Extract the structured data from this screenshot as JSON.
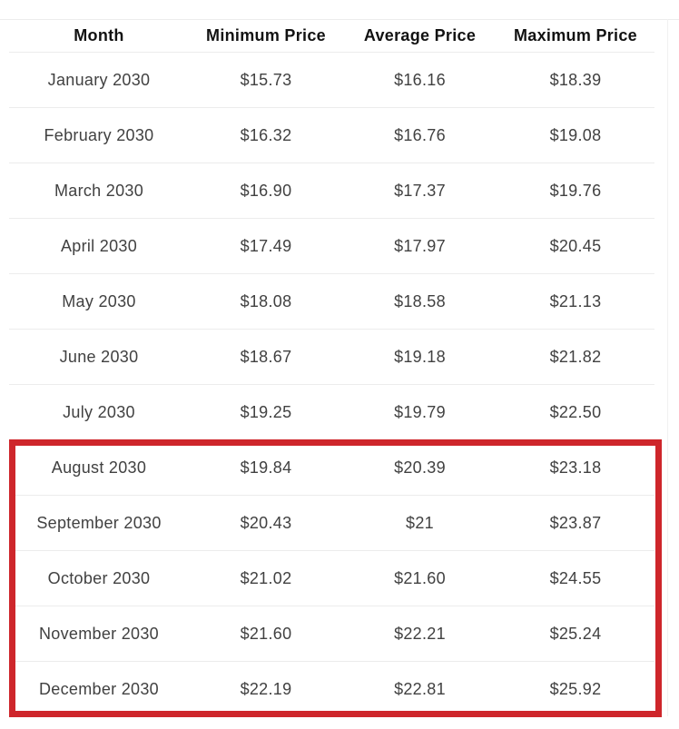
{
  "table": {
    "columns": [
      "Month",
      "Minimum Price",
      "Average Price",
      "Maximum Price"
    ],
    "rows": [
      {
        "month": "January 2030",
        "min": "$15.73",
        "avg": "$16.16",
        "max": "$18.39",
        "highlighted": false
      },
      {
        "month": "February 2030",
        "min": "$16.32",
        "avg": "$16.76",
        "max": "$19.08",
        "highlighted": false
      },
      {
        "month": "March 2030",
        "min": "$16.90",
        "avg": "$17.37",
        "max": "$19.76",
        "highlighted": false
      },
      {
        "month": "April 2030",
        "min": "$17.49",
        "avg": "$17.97",
        "max": "$20.45",
        "highlighted": false
      },
      {
        "month": "May 2030",
        "min": "$18.08",
        "avg": "$18.58",
        "max": "$21.13",
        "highlighted": false
      },
      {
        "month": "June 2030",
        "min": "$18.67",
        "avg": "$19.18",
        "max": "$21.82",
        "highlighted": false
      },
      {
        "month": "July 2030",
        "min": "$19.25",
        "avg": "$19.79",
        "max": "$22.50",
        "highlighted": false
      },
      {
        "month": "August 2030",
        "min": "$19.84",
        "avg": "$20.39",
        "max": "$23.18",
        "highlighted": true
      },
      {
        "month": "September 2030",
        "min": "$20.43",
        "avg": "$21",
        "max": "$23.87",
        "highlighted": true
      },
      {
        "month": "October 2030",
        "min": "$21.02",
        "avg": "$21.60",
        "max": "$24.55",
        "highlighted": true
      },
      {
        "month": "November 2030",
        "min": "$21.60",
        "avg": "$22.21",
        "max": "$25.24",
        "highlighted": true
      },
      {
        "month": "December 2030",
        "min": "$22.19",
        "avg": "$22.81",
        "max": "$25.92",
        "highlighted": true
      }
    ]
  },
  "annotation": {
    "type": "highlight-box",
    "border_color": "#ce262b",
    "rows_enclosed": [
      "August 2030",
      "September 2030",
      "October 2030",
      "November 2030",
      "December 2030"
    ]
  },
  "colors": {
    "background": "#ffffff",
    "header_text": "#121212",
    "body_text": "#414141",
    "row_divider": "#ececec",
    "table_right_border": "#f1f1f1",
    "highlight_border": "#ce262b"
  },
  "chart_data": {
    "type": "table",
    "columns": [
      "Month",
      "Minimum Price",
      "Average Price",
      "Maximum Price"
    ],
    "rows": [
      [
        "January 2030",
        "$15.73",
        "$16.16",
        "$18.39"
      ],
      [
        "February 2030",
        "$16.32",
        "$16.76",
        "$19.08"
      ],
      [
        "March 2030",
        "$16.90",
        "$17.37",
        "$19.76"
      ],
      [
        "April 2030",
        "$17.49",
        "$17.97",
        "$20.45"
      ],
      [
        "May 2030",
        "$18.08",
        "$18.58",
        "$21.13"
      ],
      [
        "June 2030",
        "$18.67",
        "$19.18",
        "$21.82"
      ],
      [
        "July 2030",
        "$19.25",
        "$19.79",
        "$22.50"
      ],
      [
        "August 2030",
        "$19.84",
        "$20.39",
        "$23.18"
      ],
      [
        "September 2030",
        "$20.43",
        "$21",
        "$23.87"
      ],
      [
        "October 2030",
        "$21.02",
        "$21.60",
        "$24.55"
      ],
      [
        "November 2030",
        "$21.60",
        "$22.21",
        "$25.24"
      ],
      [
        "December 2030",
        "$22.19",
        "$22.81",
        "$25.92"
      ]
    ],
    "numeric": {
      "months": [
        "January 2030",
        "February 2030",
        "March 2030",
        "April 2030",
        "May 2030",
        "June 2030",
        "July 2030",
        "August 2030",
        "September 2030",
        "October 2030",
        "November 2030",
        "December 2030"
      ],
      "minimum_price": [
        15.73,
        16.32,
        16.9,
        17.49,
        18.08,
        18.67,
        19.25,
        19.84,
        20.43,
        21.02,
        21.6,
        22.19
      ],
      "average_price": [
        16.16,
        16.76,
        17.37,
        17.97,
        18.58,
        19.18,
        19.79,
        20.39,
        21.0,
        21.6,
        22.21,
        22.81
      ],
      "maximum_price": [
        18.39,
        19.08,
        19.76,
        20.45,
        21.13,
        21.82,
        22.5,
        23.18,
        23.87,
        24.55,
        25.24,
        25.92
      ]
    },
    "highlighted_rows": [
      "August 2030",
      "September 2030",
      "October 2030",
      "November 2030",
      "December 2030"
    ]
  }
}
